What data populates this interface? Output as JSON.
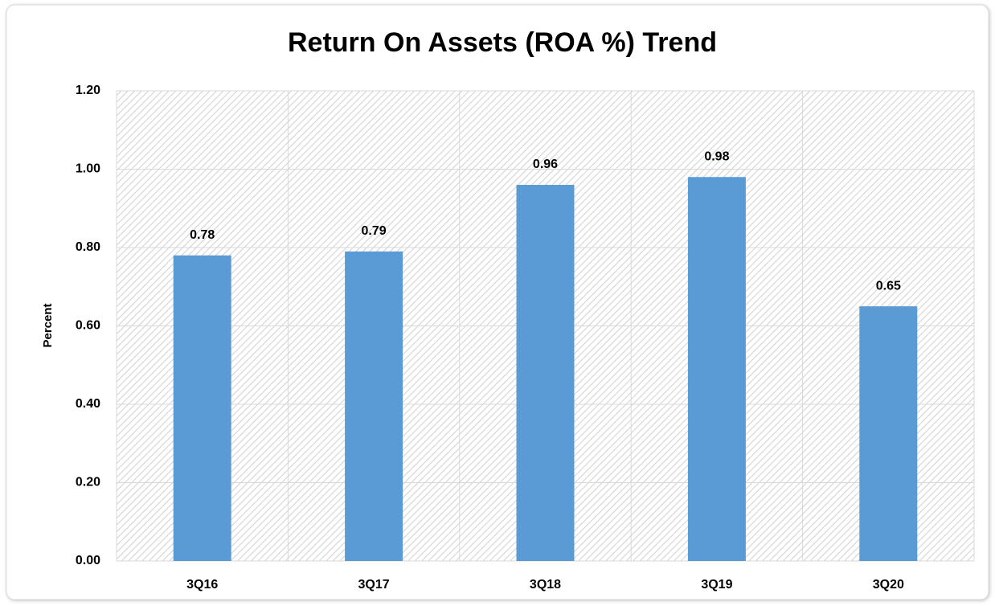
{
  "chart_data": {
    "type": "bar",
    "title": "Return On Assets (ROA %) Trend",
    "y_label": "Percent",
    "categories": [
      "3Q16",
      "3Q17",
      "3Q18",
      "3Q19",
      "3Q20"
    ],
    "values": [
      0.78,
      0.79,
      0.96,
      0.98,
      0.65
    ],
    "color": "#5b9bd5",
    "ylim": [
      0,
      1.2
    ],
    "yticks": [
      {
        "value": 0,
        "label": "0.00"
      },
      {
        "value": 0.2,
        "label": "0.20"
      },
      {
        "value": 0.4,
        "label": "0.40"
      },
      {
        "value": 0.6,
        "label": "0.60"
      },
      {
        "value": 0.8,
        "label": "0.80"
      },
      {
        "value": 1,
        "label": "1.00"
      },
      {
        "value": 1.2,
        "label": "1.20"
      }
    ],
    "grid": true
  }
}
